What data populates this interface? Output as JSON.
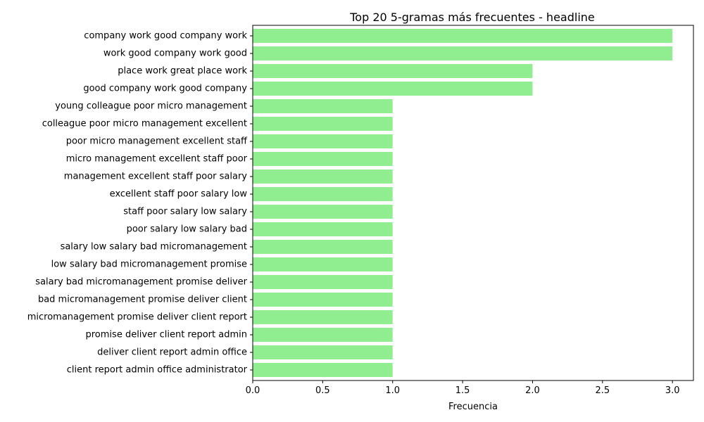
{
  "chart_data": {
    "type": "bar",
    "orientation": "horizontal",
    "title": "Top 20 5-gramas más frecuentes - headline",
    "xlabel": "Frecuencia",
    "ylabel": "",
    "xlim": [
      0,
      3.15
    ],
    "xticks": [
      0,
      0.5,
      1,
      1.5,
      2,
      2.5,
      3
    ],
    "xtick_labels": [
      "0.0",
      "0.5",
      "1.0",
      "1.5",
      "2.0",
      "2.5",
      "3.0"
    ],
    "grid": false,
    "legend": "none",
    "bar_color": "#90ee90",
    "categories": [
      "company work good company work",
      "work good company work good",
      "place work great place work",
      "good company work good company",
      "young colleague poor micro management",
      "colleague poor micro management excellent",
      "poor micro management excellent staff",
      "micro management excellent staff poor",
      "management excellent staff poor salary",
      "excellent staff poor salary low",
      "staff poor salary low salary",
      "poor salary low salary bad",
      "salary low salary bad micromanagement",
      "low salary bad micromanagement promise",
      "salary bad micromanagement promise deliver",
      "bad micromanagement promise deliver client",
      "micromanagement promise deliver client report",
      "promise deliver client report admin",
      "deliver client report admin office",
      "client report admin office administrator"
    ],
    "values": [
      3,
      3,
      2,
      2,
      1,
      1,
      1,
      1,
      1,
      1,
      1,
      1,
      1,
      1,
      1,
      1,
      1,
      1,
      1,
      1
    ]
  }
}
